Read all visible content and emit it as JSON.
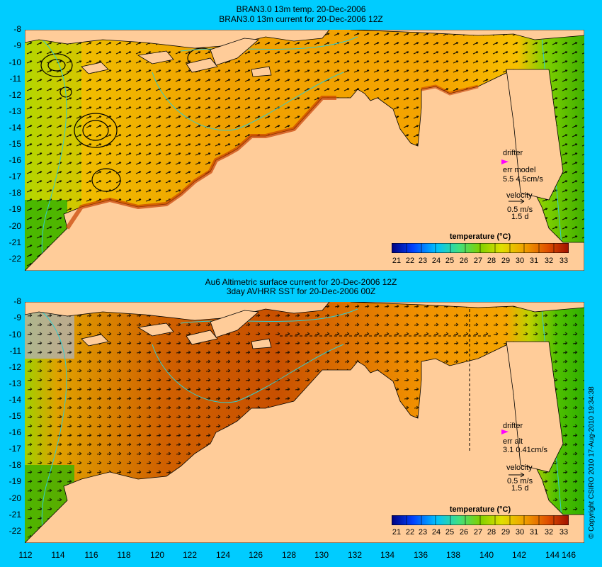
{
  "top_panel": {
    "title_line1": "BRAN3.0 13m temp. 20-Dec-2006",
    "title_line2": "BRAN3.0 13m current for 20-Dec-2006 12Z",
    "drifter_label": "drifter",
    "err_label": "err model",
    "err_values": "5.5 4.5cm/s",
    "velocity_label": "velocity",
    "velocity_scale": "0.5 m/s",
    "velocity_days": "1.5 d",
    "colorbar_title": "temperature (°C)"
  },
  "bottom_panel": {
    "title_line1": "Au6 Altimetric surface current for 20-Dec-2006 12Z",
    "title_line2": "3day AVHRR SST for 20-Dec-2006 00Z",
    "drifter_label": "drifter",
    "err_label": "err alt",
    "err_values": "3.1 0.41cm/s",
    "velocity_label": "velocity",
    "velocity_scale": "0.5 m/s",
    "velocity_days": "1.5 d",
    "colorbar_title": "temperature (°C)"
  },
  "lat_ticks": [
    "-8",
    "-9",
    "-10",
    "-11",
    "-12",
    "-13",
    "-14",
    "-15",
    "-16",
    "-17",
    "-18",
    "-19",
    "-20",
    "-21",
    "-22"
  ],
  "lon_ticks": [
    "112",
    "114",
    "116",
    "118",
    "120",
    "122",
    "124",
    "126",
    "128",
    "130",
    "132",
    "134",
    "136",
    "138",
    "140",
    "142",
    "144",
    "146"
  ],
  "colorbar_labels": [
    "21",
    "22",
    "23",
    "24",
    "25",
    "26",
    "27",
    "28",
    "29",
    "30",
    "31",
    "32",
    "33"
  ],
  "copyright": "© Copyright CSIRO 2010   17-Aug-2010 19:34:38",
  "colors": {
    "background": "#00ccff",
    "land": "#ffcc99",
    "drifter": "#ff00ff",
    "contour": "#33cccc"
  }
}
